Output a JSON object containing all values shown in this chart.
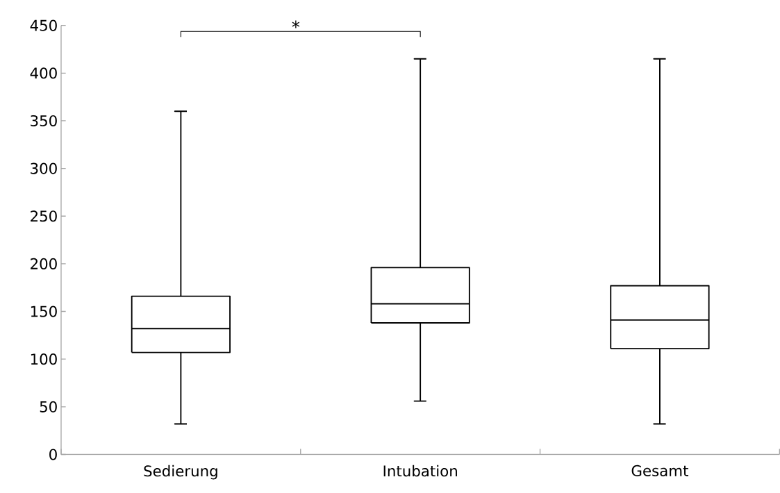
{
  "chart_data": {
    "type": "box",
    "categories": [
      "Sedierung",
      "Intubation",
      "Gesamt"
    ],
    "boxes": [
      {
        "low": 32,
        "q1": 107,
        "median": 132,
        "q3": 166,
        "high": 360
      },
      {
        "low": 56,
        "q1": 138,
        "median": 158,
        "q3": 196,
        "high": 415
      },
      {
        "low": 32,
        "q1": 111,
        "median": 141,
        "q3": 177,
        "high": 415
      }
    ],
    "ylim": [
      0,
      450
    ],
    "yticks": [
      0,
      50,
      100,
      150,
      200,
      250,
      300,
      350,
      400,
      450
    ],
    "annotations": [
      "*"
    ]
  }
}
